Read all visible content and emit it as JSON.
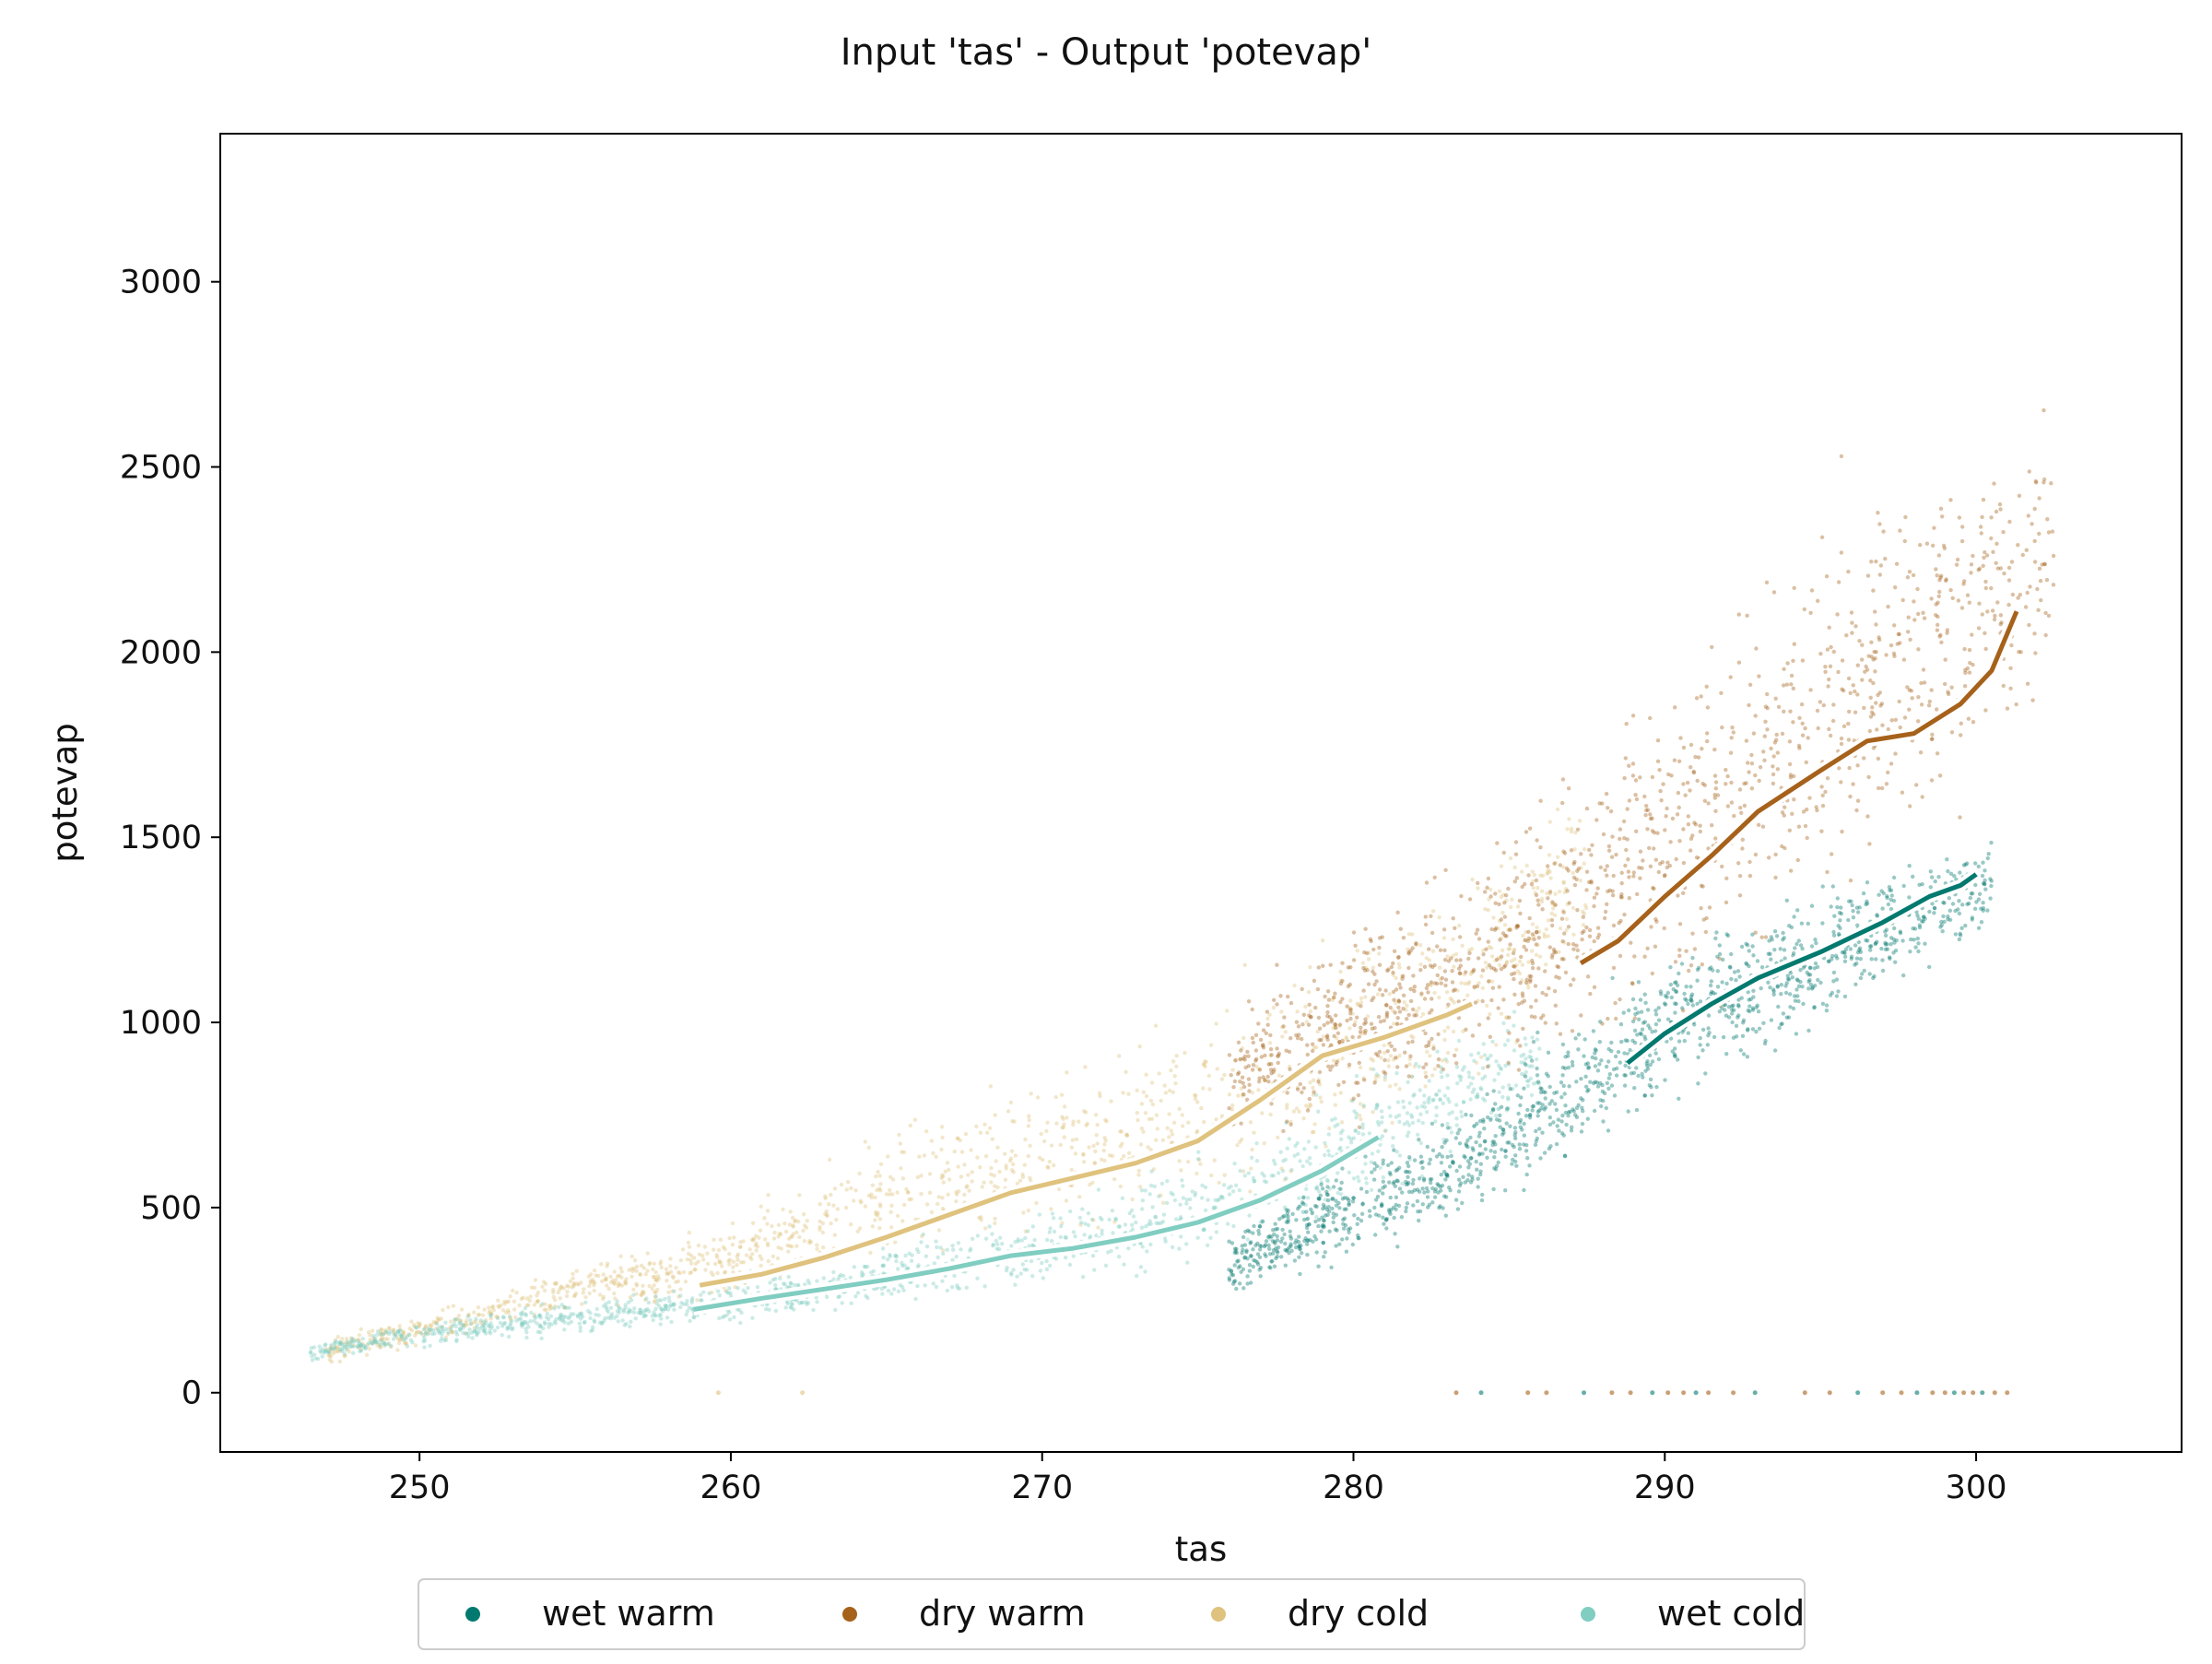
{
  "chart_data": {
    "type": "scatter",
    "title": "Input 'tas' - Output 'potevap'",
    "xlabel": "tas",
    "ylabel": "potevap",
    "xlim": [
      243.6,
      306.6
    ],
    "ylim": [
      -160,
      3400
    ],
    "x_ticks": [
      250,
      260,
      270,
      280,
      290,
      300
    ],
    "y_ticks": [
      0,
      500,
      1000,
      1500,
      2000,
      2500,
      3000
    ],
    "grid": false,
    "legend_position": "bottom-center",
    "colors": {
      "wet warm": "#01796f",
      "dry warm": "#a6611a",
      "dry cold": "#dfc27d",
      "wet cold": "#80cdc1"
    },
    "series": [
      {
        "name": "dry cold",
        "trend": [
          [
            259,
            290
          ],
          [
            261,
            320
          ],
          [
            263,
            365
          ],
          [
            265,
            420
          ],
          [
            267,
            480
          ],
          [
            269,
            540
          ],
          [
            271,
            580
          ],
          [
            273,
            620
          ],
          [
            275,
            680
          ],
          [
            277,
            790
          ],
          [
            279,
            910
          ],
          [
            281,
            960
          ],
          [
            283,
            1020
          ],
          [
            283.8,
            1050
          ]
        ],
        "cloud": [
          [
            247,
            110,
            25
          ],
          [
            250,
            170,
            35
          ],
          [
            253,
            230,
            40
          ],
          [
            256,
            300,
            45
          ],
          [
            258,
            320,
            55
          ],
          [
            260,
            360,
            75
          ],
          [
            263,
            470,
            110
          ],
          [
            266,
            560,
            140
          ],
          [
            269,
            620,
            170
          ],
          [
            272,
            680,
            190
          ],
          [
            275,
            760,
            210
          ],
          [
            278,
            880,
            230
          ],
          [
            281,
            1000,
            240
          ],
          [
            284,
            1150,
            230
          ],
          [
            286,
            1300,
            200
          ],
          [
            287.5,
            1400,
            170
          ]
        ]
      },
      {
        "name": "wet cold",
        "trend": [
          [
            258.8,
            225
          ],
          [
            261,
            255
          ],
          [
            263,
            280
          ],
          [
            265,
            305
          ],
          [
            267,
            335
          ],
          [
            269,
            370
          ],
          [
            271,
            390
          ],
          [
            273,
            420
          ],
          [
            275,
            460
          ],
          [
            277,
            520
          ],
          [
            279,
            600
          ],
          [
            280.8,
            690
          ]
        ],
        "cloud": [
          [
            246.5,
            110,
            20
          ],
          [
            249,
            145,
            25
          ],
          [
            252,
            175,
            30
          ],
          [
            255,
            205,
            35
          ],
          [
            258,
            225,
            40
          ],
          [
            261,
            260,
            45
          ],
          [
            264,
            295,
            55
          ],
          [
            267,
            345,
            65
          ],
          [
            270,
            395,
            75
          ],
          [
            273,
            440,
            90
          ],
          [
            276,
            510,
            110
          ],
          [
            279,
            620,
            130
          ],
          [
            281.5,
            740,
            140
          ],
          [
            284,
            850,
            130
          ],
          [
            286,
            900,
            110
          ]
        ]
      },
      {
        "name": "dry warm",
        "trend": [
          [
            287.3,
            1160
          ],
          [
            288.5,
            1220
          ],
          [
            290,
            1340
          ],
          [
            291.5,
            1450
          ],
          [
            293,
            1570
          ],
          [
            295,
            1680
          ],
          [
            296.5,
            1760
          ],
          [
            298,
            1780
          ],
          [
            299.5,
            1860
          ],
          [
            300.5,
            1950
          ],
          [
            301.3,
            2110
          ]
        ],
        "cloud": [
          [
            276,
            840,
            130
          ],
          [
            278,
            930,
            160
          ],
          [
            280,
            1000,
            190
          ],
          [
            282,
            1080,
            210
          ],
          [
            284,
            1150,
            230
          ],
          [
            286,
            1250,
            260
          ],
          [
            288,
            1370,
            300
          ],
          [
            290,
            1480,
            340
          ],
          [
            292,
            1610,
            380
          ],
          [
            294,
            1750,
            400
          ],
          [
            296,
            1880,
            400
          ],
          [
            298,
            1990,
            400
          ],
          [
            300,
            2100,
            390
          ],
          [
            301.5,
            2180,
            370
          ],
          [
            302.5,
            2250,
            330
          ]
        ]
      },
      {
        "name": "wet warm",
        "trend": [
          [
            288.8,
            890
          ],
          [
            290,
            970
          ],
          [
            291.5,
            1050
          ],
          [
            293,
            1120
          ],
          [
            295,
            1190
          ],
          [
            297,
            1270
          ],
          [
            298.5,
            1340
          ],
          [
            299.5,
            1370
          ],
          [
            300,
            1400
          ]
        ],
        "cloud": [
          [
            276,
            350,
            60
          ],
          [
            278,
            420,
            80
          ],
          [
            280,
            500,
            100
          ],
          [
            282,
            560,
            110
          ],
          [
            284,
            650,
            120
          ],
          [
            286,
            760,
            140
          ],
          [
            288,
            880,
            150
          ],
          [
            290,
            990,
            150
          ],
          [
            292,
            1070,
            150
          ],
          [
            294,
            1140,
            150
          ],
          [
            296,
            1220,
            140
          ],
          [
            298,
            1290,
            120
          ],
          [
            299.5,
            1330,
            110
          ],
          [
            300.5,
            1380,
            90
          ]
        ]
      }
    ],
    "zero_points": [
      [
        259.6,
        0
      ],
      [
        262.3,
        0
      ],
      [
        283.3,
        0
      ],
      [
        284.1,
        0
      ],
      [
        285.6,
        0
      ],
      [
        286.2,
        0
      ],
      [
        287.4,
        0
      ],
      [
        288.3,
        0
      ],
      [
        288.9,
        0
      ],
      [
        289.6,
        0
      ],
      [
        290.1,
        0
      ],
      [
        290.6,
        0
      ],
      [
        291.0,
        0
      ],
      [
        291.4,
        0
      ],
      [
        292.2,
        0
      ],
      [
        292.9,
        0
      ],
      [
        294.5,
        0
      ],
      [
        295.3,
        0
      ],
      [
        296.2,
        0
      ],
      [
        297.0,
        0
      ],
      [
        297.6,
        0
      ],
      [
        298.1,
        0
      ],
      [
        298.6,
        0
      ],
      [
        299.0,
        0
      ],
      [
        299.3,
        0
      ],
      [
        299.6,
        0
      ],
      [
        299.9,
        0
      ],
      [
        300.2,
        0
      ],
      [
        300.6,
        0
      ],
      [
        301.0,
        0
      ]
    ]
  },
  "legend": {
    "items": [
      {
        "label": "wet warm",
        "color": "#01796f"
      },
      {
        "label": "dry warm",
        "color": "#a6611a"
      },
      {
        "label": "dry cold",
        "color": "#dfc27d"
      },
      {
        "label": "wet cold",
        "color": "#80cdc1"
      }
    ]
  }
}
